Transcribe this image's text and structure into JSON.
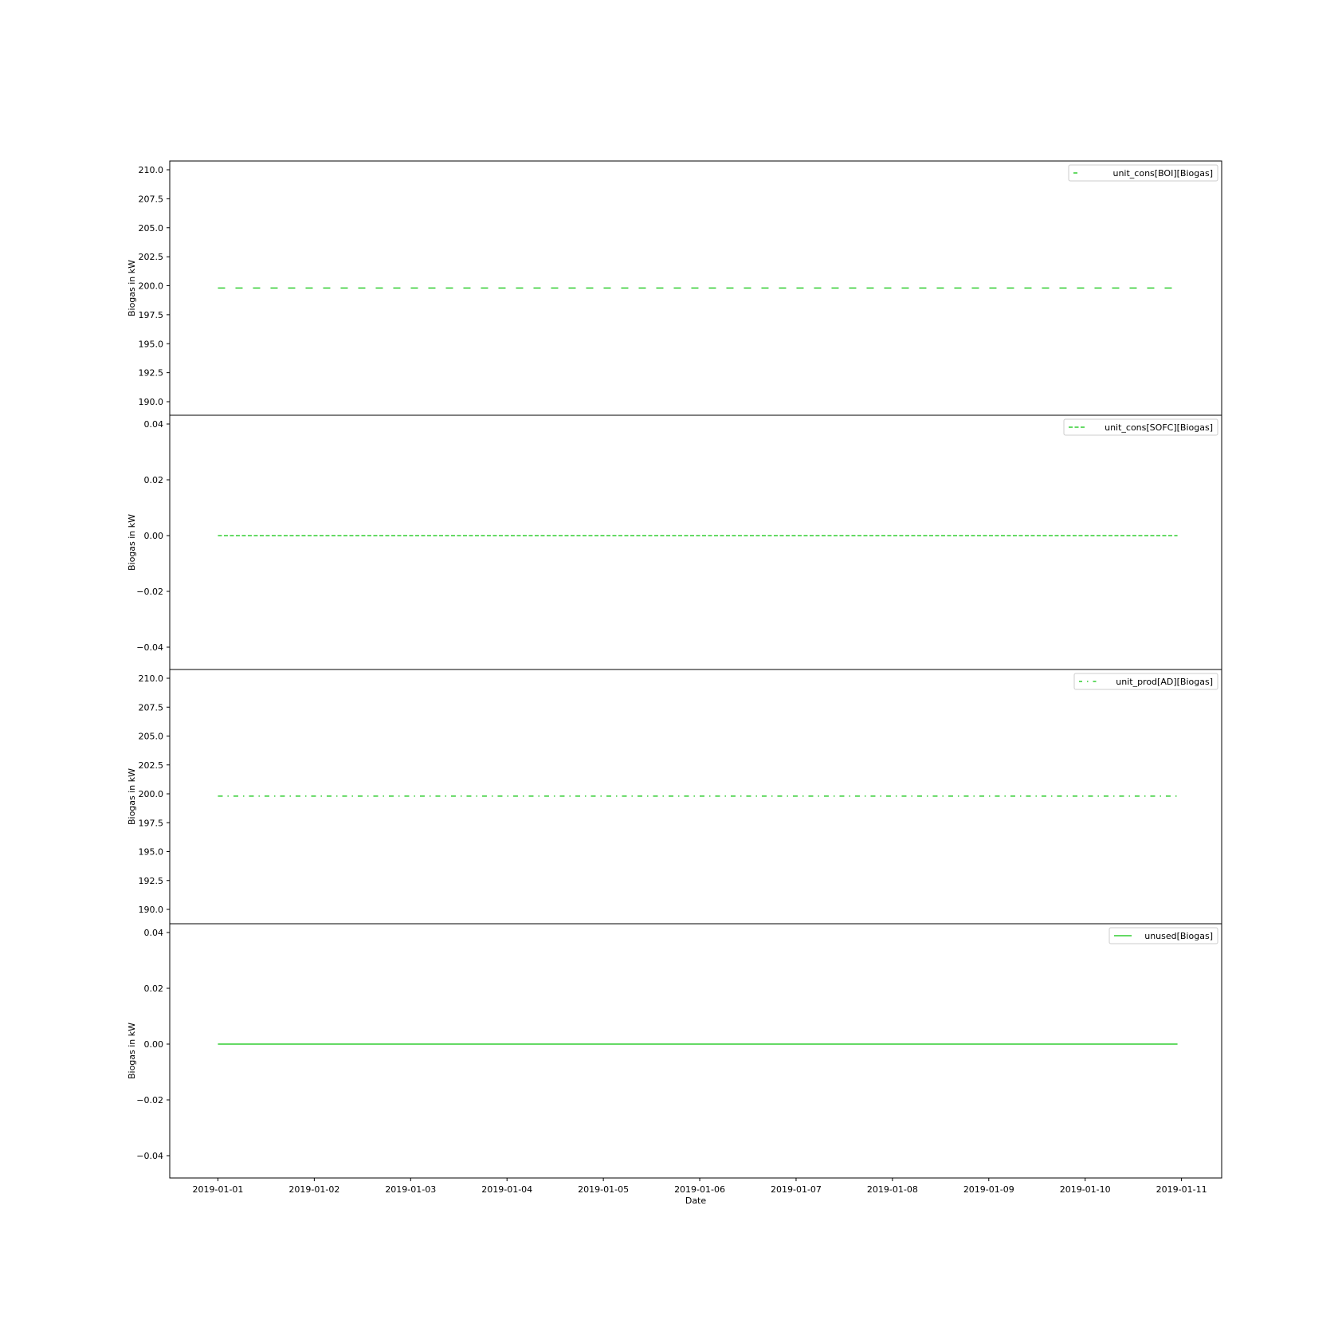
{
  "figure": {
    "xlabel": "Date",
    "x_ticks": [
      "2019-01-01",
      "2019-01-02",
      "2019-01-03",
      "2019-01-04",
      "2019-01-05",
      "2019-01-06",
      "2019-01-07",
      "2019-01-08",
      "2019-01-09",
      "2019-01-10",
      "2019-01-11"
    ],
    "xlim": [
      "2018-12-31T12:00",
      "2019-01-11T10:00"
    ]
  },
  "chart_data": [
    {
      "type": "line",
      "title": "",
      "xlabel": "",
      "ylabel": "Biogas in kW",
      "ylim": [
        189.2,
        210.8
      ],
      "y_ticks": [
        "190.0",
        "192.5",
        "195.0",
        "197.5",
        "200.0",
        "202.5",
        "205.0",
        "207.5",
        "210.0"
      ],
      "legend_position": "top-right",
      "grid": false,
      "series": [
        {
          "name": "unit_cons[BOI][Biogas]",
          "x": [
            "2019-01-01T00:00",
            "2019-01-10T23:00"
          ],
          "values": [
            199.8,
            199.8
          ],
          "color": "#32cd32",
          "linestyle": "dashed"
        }
      ]
    },
    {
      "type": "line",
      "title": "",
      "xlabel": "",
      "ylabel": "Biogas in kW",
      "ylim": [
        -0.055,
        0.055
      ],
      "y_ticks": [
        "−0.04",
        "−0.02",
        "0.00",
        "0.02",
        "0.04"
      ],
      "legend_position": "top-right",
      "grid": false,
      "series": [
        {
          "name": "unit_cons[SOFC][Biogas]",
          "x": [
            "2019-01-01T00:00",
            "2019-01-10T23:00"
          ],
          "values": [
            0.0,
            0.0
          ],
          "color": "#32cd32",
          "linestyle": "dashed-fine"
        }
      ]
    },
    {
      "type": "line",
      "title": "",
      "xlabel": "",
      "ylabel": "Biogas in kW",
      "ylim": [
        189.2,
        210.8
      ],
      "y_ticks": [
        "190.0",
        "192.5",
        "195.0",
        "197.5",
        "200.0",
        "202.5",
        "205.0",
        "207.5",
        "210.0"
      ],
      "legend_position": "top-right",
      "grid": false,
      "series": [
        {
          "name": "unit_prod[AD][Biogas]",
          "x": [
            "2019-01-01T00:00",
            "2019-01-10T23:00"
          ],
          "values": [
            199.8,
            199.8
          ],
          "color": "#32cd32",
          "linestyle": "dashdot"
        }
      ]
    },
    {
      "type": "line",
      "title": "",
      "xlabel": "Date",
      "ylabel": "Biogas in kW",
      "ylim": [
        -0.055,
        0.055
      ],
      "y_ticks": [
        "−0.04",
        "−0.02",
        "0.00",
        "0.02",
        "0.04"
      ],
      "legend_position": "top-right",
      "grid": false,
      "series": [
        {
          "name": "unused[Biogas]",
          "x": [
            "2019-01-01T00:00",
            "2019-01-10T23:00"
          ],
          "values": [
            0.0,
            0.0
          ],
          "color": "#32cd32",
          "linestyle": "solid"
        }
      ]
    }
  ]
}
